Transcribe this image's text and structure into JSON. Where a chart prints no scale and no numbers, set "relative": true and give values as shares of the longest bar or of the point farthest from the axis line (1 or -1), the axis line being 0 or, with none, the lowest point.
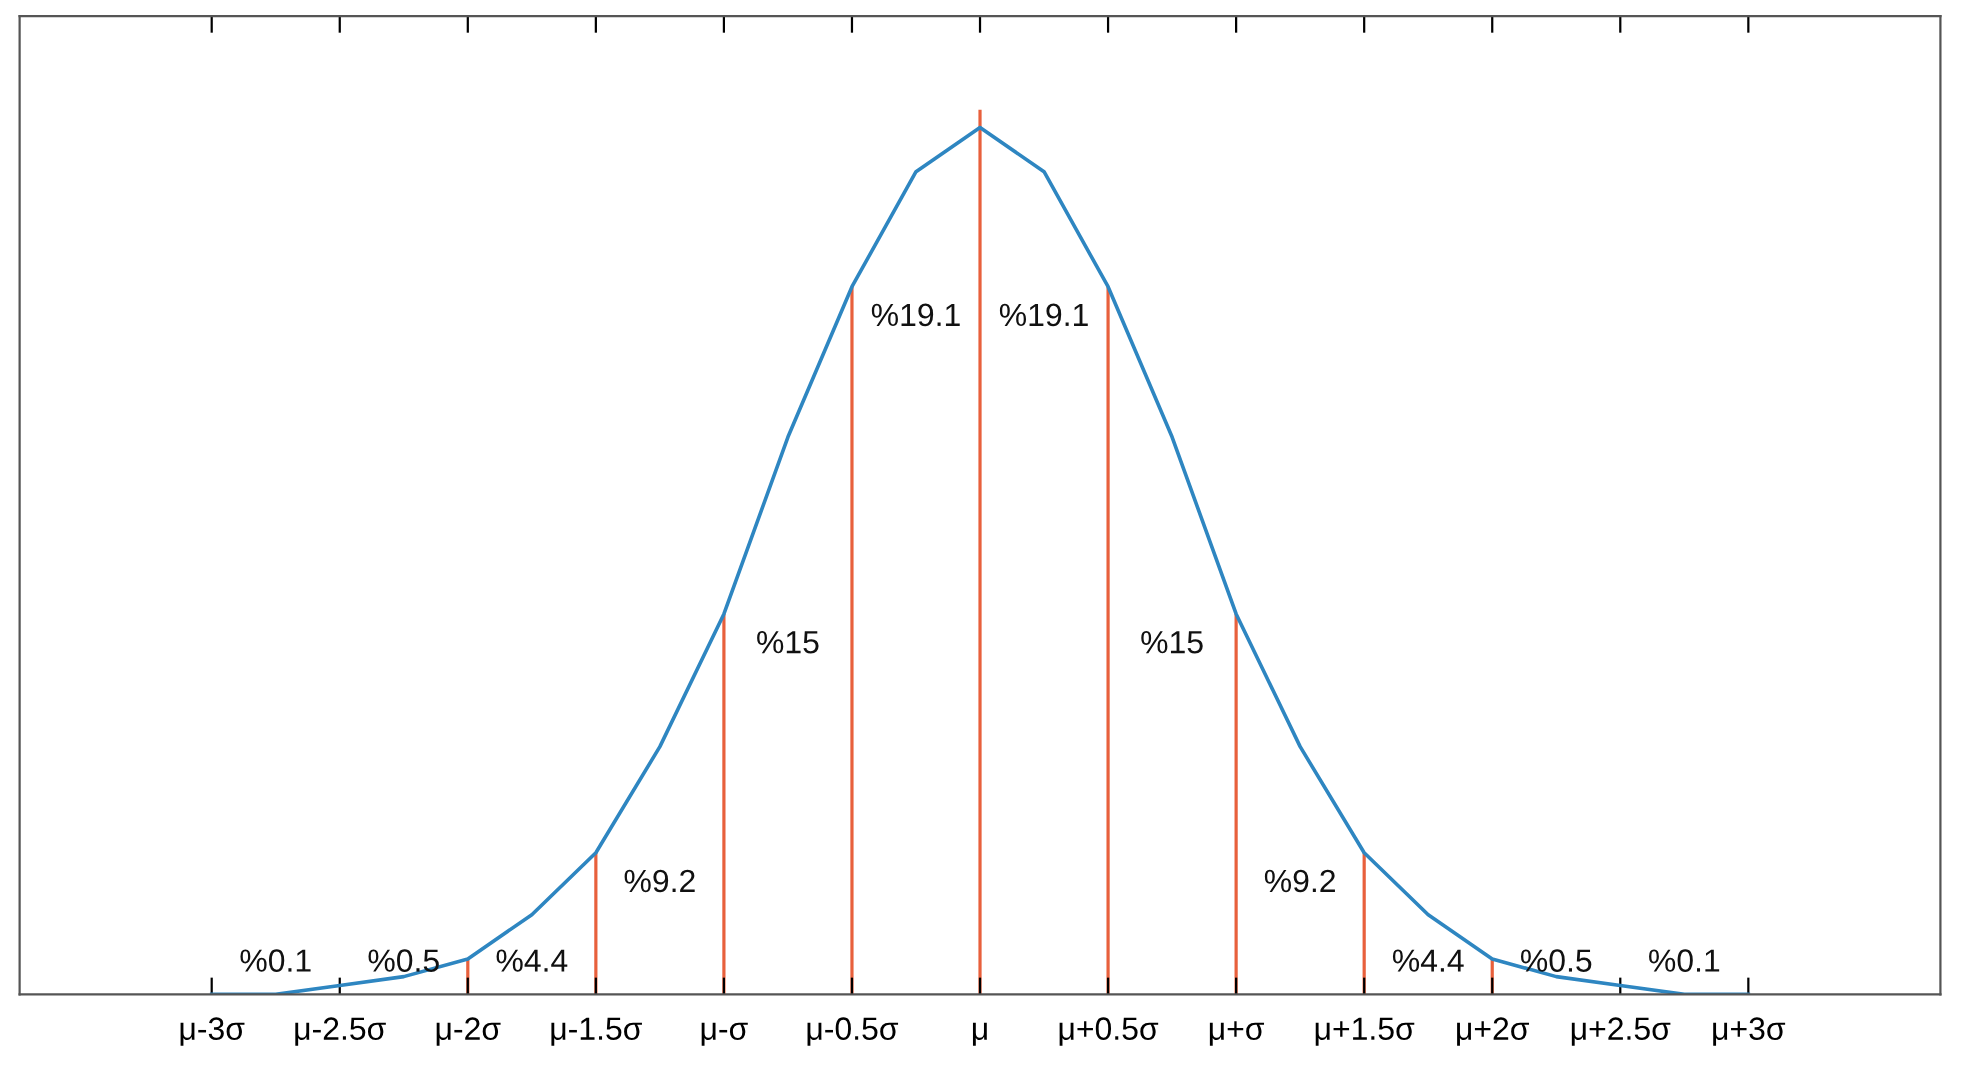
{
  "chart_data": {
    "type": "line",
    "relative": true,
    "categories": [
      "μ-3σ",
      null,
      "μ-2.5σ",
      null,
      "μ-2σ",
      null,
      "μ-1.5σ",
      null,
      "μ-σ",
      null,
      "μ-0.5σ",
      null,
      "μ",
      null,
      "μ+0.5σ",
      null,
      "μ+σ",
      null,
      "μ+1.5σ",
      null,
      "μ+2σ",
      null,
      "μ+2.5σ",
      null,
      "μ+3σ"
    ],
    "series": [
      {
        "color": "#2e86c1",
        "values": [
          0,
          0,
          0.01,
          0.02,
          0.04,
          0.09,
          0.16,
          0.28,
          0.43,
          0.63,
          0.8,
          0.93,
          0.98,
          0.93,
          0.8,
          0.63,
          0.43,
          0.28,
          0.16,
          0.09,
          0.04,
          0.02,
          0.01,
          0,
          0
        ]
      },
      {
        "type": "bar",
        "color": "#e8603c",
        "values": [
          null,
          null,
          null,
          null,
          0.04,
          null,
          0.16,
          null,
          0.43,
          null,
          0.8,
          null,
          1,
          null,
          0.8,
          null,
          0.43,
          null,
          0.16,
          null,
          0.04,
          null,
          null,
          null,
          null
        ]
      }
    ],
    "annotations": [
      "%0.1",
      "%0.5",
      "%4.4",
      "%9.2",
      "%15",
      "%19.1",
      "%19.1",
      "%15",
      "%9.2",
      "%4.4",
      "%0.5",
      "%0.1"
    ],
    "grid": false
  }
}
